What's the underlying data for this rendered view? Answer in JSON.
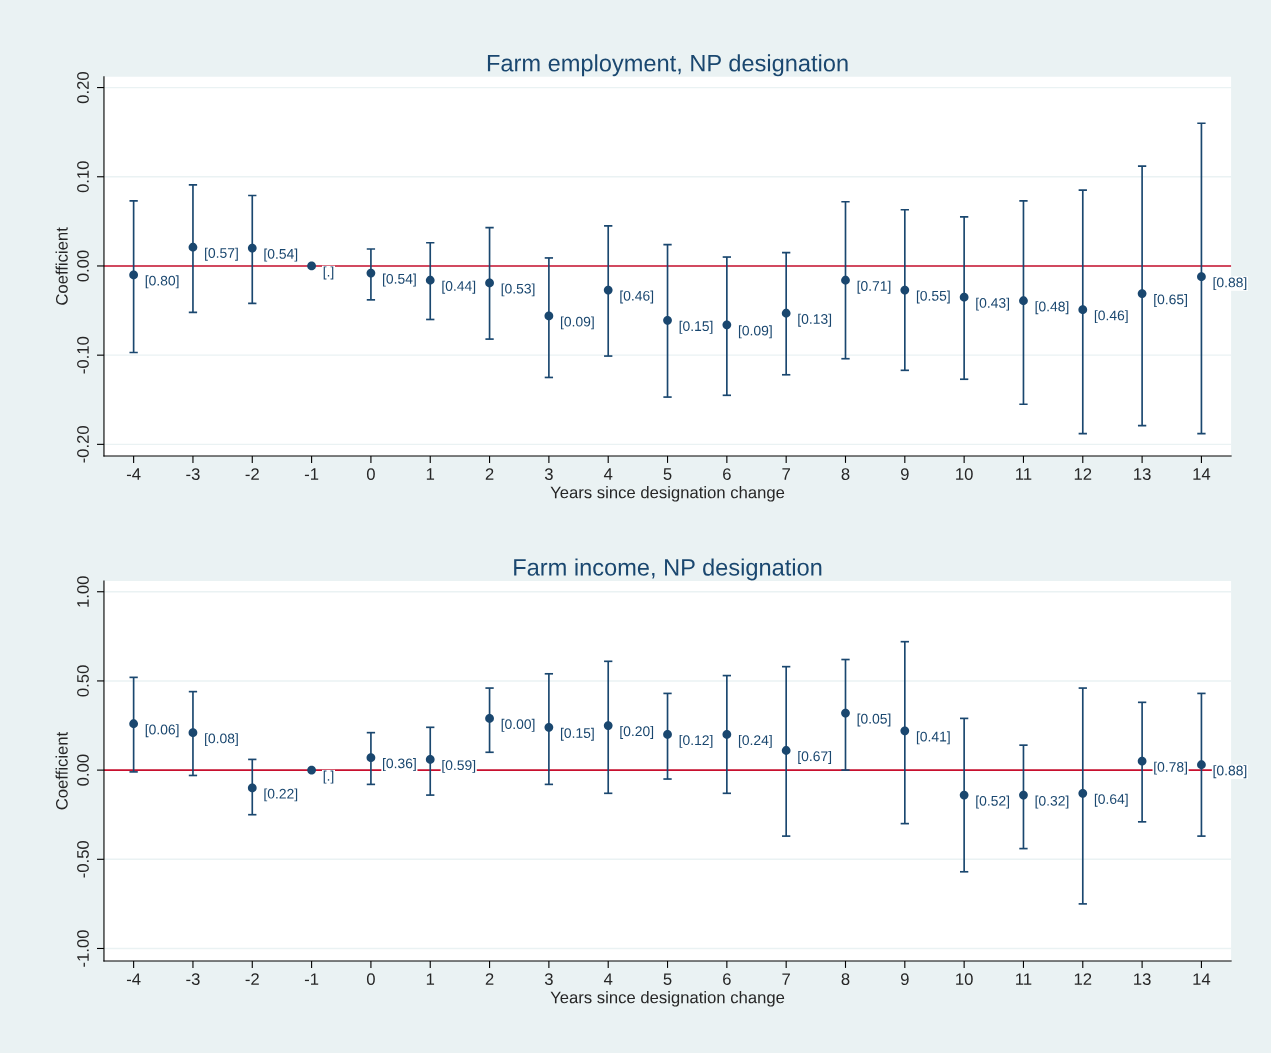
{
  "chart_data": [
    {
      "type": "scatter",
      "title": "Farm employment, NP designation",
      "xlabel": "Years since designation change",
      "ylabel": "Coefficient",
      "x": [
        -4,
        -3,
        -2,
        -1,
        0,
        1,
        2,
        3,
        4,
        5,
        6,
        7,
        8,
        9,
        10,
        11,
        12,
        13,
        14
      ],
      "series": [
        {
          "color": "#1a476f",
          "values": [
            -0.01,
            0.021,
            0.02,
            0.0,
            -0.008,
            -0.016,
            -0.019,
            -0.056,
            -0.027,
            -0.061,
            -0.066,
            -0.053,
            -0.016,
            -0.027,
            -0.035,
            -0.039,
            -0.049,
            -0.031,
            -0.012
          ],
          "errors": [
            [
              -0.097,
              0.073
            ],
            [
              -0.052,
              0.091
            ],
            [
              -0.042,
              0.079
            ],
            null,
            [
              -0.038,
              0.019
            ],
            [
              -0.06,
              0.026
            ],
            [
              -0.082,
              0.043
            ],
            [
              -0.125,
              0.009
            ],
            [
              -0.101,
              0.045
            ],
            [
              -0.147,
              0.024
            ],
            [
              -0.145,
              0.01
            ],
            [
              -0.122,
              0.015
            ],
            [
              -0.104,
              0.072
            ],
            [
              -0.117,
              0.063
            ],
            [
              -0.127,
              0.055
            ],
            [
              -0.155,
              0.073
            ],
            [
              -0.188,
              0.085
            ],
            [
              -0.179,
              0.112
            ],
            [
              -0.188,
              0.16
            ]
          ]
        }
      ],
      "annotations": [
        {
          "text": "[0.80]",
          "x": -4,
          "y": -0.01
        },
        {
          "text": "[0.57]",
          "x": -3,
          "y": 0.021
        },
        {
          "text": "[0.54]",
          "x": -2,
          "y": 0.02
        },
        {
          "text": "[.]",
          "x": -1,
          "y": 0.0
        },
        {
          "text": "[0.54]",
          "x": 0,
          "y": -0.008
        },
        {
          "text": "[0.44]",
          "x": 1,
          "y": -0.016
        },
        {
          "text": "[0.53]",
          "x": 2,
          "y": -0.019
        },
        {
          "text": "[0.09]",
          "x": 3,
          "y": -0.056
        },
        {
          "text": "[0.46]",
          "x": 4,
          "y": -0.027
        },
        {
          "text": "[0.15]",
          "x": 5,
          "y": -0.061
        },
        {
          "text": "[0.09]",
          "x": 6,
          "y": -0.066
        },
        {
          "text": "[0.13]",
          "x": 7,
          "y": -0.053
        },
        {
          "text": "[0.71]",
          "x": 8,
          "y": -0.016
        },
        {
          "text": "[0.55]",
          "x": 9,
          "y": -0.027
        },
        {
          "text": "[0.43]",
          "x": 10,
          "y": -0.035
        },
        {
          "text": "[0.48]",
          "x": 11,
          "y": -0.039
        },
        {
          "text": "[0.46]",
          "x": 12,
          "y": -0.049
        },
        {
          "text": "[0.65]",
          "x": 13,
          "y": -0.031
        },
        {
          "text": "[0.88]",
          "x": 14,
          "y": -0.012
        }
      ],
      "xlim": [
        -4.5,
        14.5
      ],
      "xticks": [
        -4,
        -3,
        -2,
        -1,
        0,
        1,
        2,
        3,
        4,
        5,
        6,
        7,
        8,
        9,
        10,
        11,
        12,
        13,
        14
      ],
      "ylim": [
        -0.213,
        0.212
      ],
      "yticks": [
        {
          "value": -0.2,
          "label": "-0.20"
        },
        {
          "value": -0.1,
          "label": "-0.10"
        },
        {
          "value": 0,
          "label": "0.00"
        },
        {
          "value": 0.1,
          "label": "0.10"
        },
        {
          "value": 0.2,
          "label": "0.20"
        }
      ],
      "ref_lines": [
        {
          "axis": "y",
          "value": 0,
          "color": "#c8102e"
        }
      ],
      "grid": "y",
      "marker": "circle",
      "legend": false
    },
    {
      "type": "scatter",
      "title": "Farm income, NP designation",
      "xlabel": "Years since designation change",
      "ylabel": "Coefficient",
      "x": [
        -4,
        -3,
        -2,
        -1,
        0,
        1,
        2,
        3,
        4,
        5,
        6,
        7,
        8,
        9,
        10,
        11,
        12,
        13,
        14
      ],
      "series": [
        {
          "color": "#1a476f",
          "values": [
            0.26,
            0.21,
            -0.1,
            0.0,
            0.07,
            0.06,
            0.29,
            0.24,
            0.25,
            0.2,
            0.2,
            0.11,
            0.32,
            0.22,
            -0.14,
            -0.14,
            -0.13,
            0.05,
            0.03
          ],
          "errors": [
            [
              -0.01,
              0.52
            ],
            [
              -0.03,
              0.44
            ],
            [
              -0.25,
              0.06
            ],
            null,
            [
              -0.08,
              0.21
            ],
            [
              -0.14,
              0.24
            ],
            [
              0.1,
              0.46
            ],
            [
              -0.08,
              0.54
            ],
            [
              -0.13,
              0.61
            ],
            [
              -0.05,
              0.43
            ],
            [
              -0.13,
              0.53
            ],
            [
              -0.37,
              0.58
            ],
            [
              0.0,
              0.62
            ],
            [
              -0.3,
              0.72
            ],
            [
              -0.57,
              0.29
            ],
            [
              -0.44,
              0.14
            ],
            [
              -0.75,
              0.46
            ],
            [
              -0.29,
              0.38
            ],
            [
              -0.37,
              0.43
            ]
          ]
        }
      ],
      "annotations": [
        {
          "text": "[0.06]",
          "x": -4,
          "y": 0.26
        },
        {
          "text": "[0.08]",
          "x": -3,
          "y": 0.21
        },
        {
          "text": "[0.22]",
          "x": -2,
          "y": -0.1
        },
        {
          "text": "[.]",
          "x": -1,
          "y": 0.0
        },
        {
          "text": "[0.36]",
          "x": 0,
          "y": 0.07
        },
        {
          "text": "[0.59]",
          "x": 1,
          "y": 0.06
        },
        {
          "text": "[0.00]",
          "x": 2,
          "y": 0.29
        },
        {
          "text": "[0.15]",
          "x": 3,
          "y": 0.24
        },
        {
          "text": "[0.20]",
          "x": 4,
          "y": 0.25
        },
        {
          "text": "[0.12]",
          "x": 5,
          "y": 0.2
        },
        {
          "text": "[0.24]",
          "x": 6,
          "y": 0.2
        },
        {
          "text": "[0.67]",
          "x": 7,
          "y": 0.11
        },
        {
          "text": "[0.05]",
          "x": 8,
          "y": 0.32
        },
        {
          "text": "[0.41]",
          "x": 9,
          "y": 0.22
        },
        {
          "text": "[0.52]",
          "x": 10,
          "y": -0.14
        },
        {
          "text": "[0.32]",
          "x": 11,
          "y": -0.14
        },
        {
          "text": "[0.64]",
          "x": 12,
          "y": -0.13
        },
        {
          "text": "[0.78]",
          "x": 13,
          "y": 0.05
        },
        {
          "text": "[0.88]",
          "x": 14,
          "y": 0.03
        }
      ],
      "xlim": [
        -4.5,
        14.5
      ],
      "xticks": [
        -4,
        -3,
        -2,
        -1,
        0,
        1,
        2,
        3,
        4,
        5,
        6,
        7,
        8,
        9,
        10,
        11,
        12,
        13,
        14
      ],
      "ylim": [
        -1.07,
        1.06
      ],
      "yticks": [
        {
          "value": -1,
          "label": "-1.00"
        },
        {
          "value": -0.5,
          "label": "-0.50"
        },
        {
          "value": 0,
          "label": "0.00"
        },
        {
          "value": 0.5,
          "label": "0.50"
        },
        {
          "value": 1,
          "label": "1.00"
        }
      ],
      "ref_lines": [
        {
          "axis": "y",
          "value": 0,
          "color": "#c8102e"
        }
      ],
      "grid": "y",
      "marker": "circle",
      "legend": false
    }
  ]
}
